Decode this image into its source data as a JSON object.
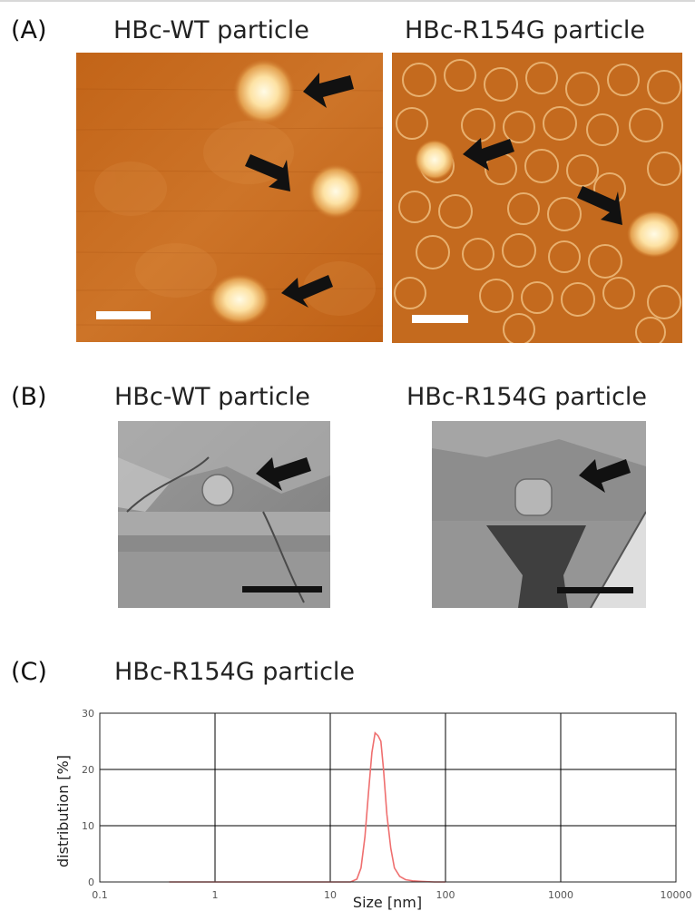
{
  "figure": {
    "panel_a": {
      "label": "(A)",
      "left_title": "HBc-WT particle",
      "right_title": "HBc-R154G particle"
    },
    "panel_b": {
      "label": "(B)",
      "left_title": "HBc-WT particle",
      "right_title": "HBc-R154G particle"
    },
    "panel_c": {
      "label": "(C)",
      "title": "HBc-R154G particle"
    }
  },
  "colors": {
    "afm_dark": "#b24f0f",
    "afm_mid": "#cf7a2e",
    "afm_bright": "#fff3cf",
    "sem_gray": "#8c8c8c",
    "curve": "#ef6f6f",
    "grid": "#000000"
  },
  "icons": [
    "arrow-icon",
    "scale-bar"
  ],
  "chart_data": {
    "type": "line",
    "title": "HBc-R154G particle",
    "xlabel": "Size [nm]",
    "ylabel": "distribution [%]",
    "xscale": "log",
    "xlim": [
      0.1,
      10000
    ],
    "ylim": [
      0,
      30
    ],
    "x_ticks": [
      "0.1",
      "1",
      "10",
      "100",
      "1000",
      "10000"
    ],
    "y_ticks": [
      "0",
      "10",
      "20",
      "30"
    ],
    "grid": true,
    "series": [
      {
        "x": [
          0.4,
          15,
          17,
          18.5,
          20,
          21.5,
          23,
          24.5,
          26,
          27.5,
          29,
          31,
          33.5,
          36,
          40,
          45,
          52,
          62,
          80,
          100
        ],
        "values": [
          0,
          0,
          0.5,
          2.5,
          8,
          16,
          23,
          26.5,
          26,
          25,
          20,
          12,
          6,
          2.5,
          1,
          0.4,
          0.2,
          0.1,
          0,
          0
        ]
      }
    ]
  }
}
